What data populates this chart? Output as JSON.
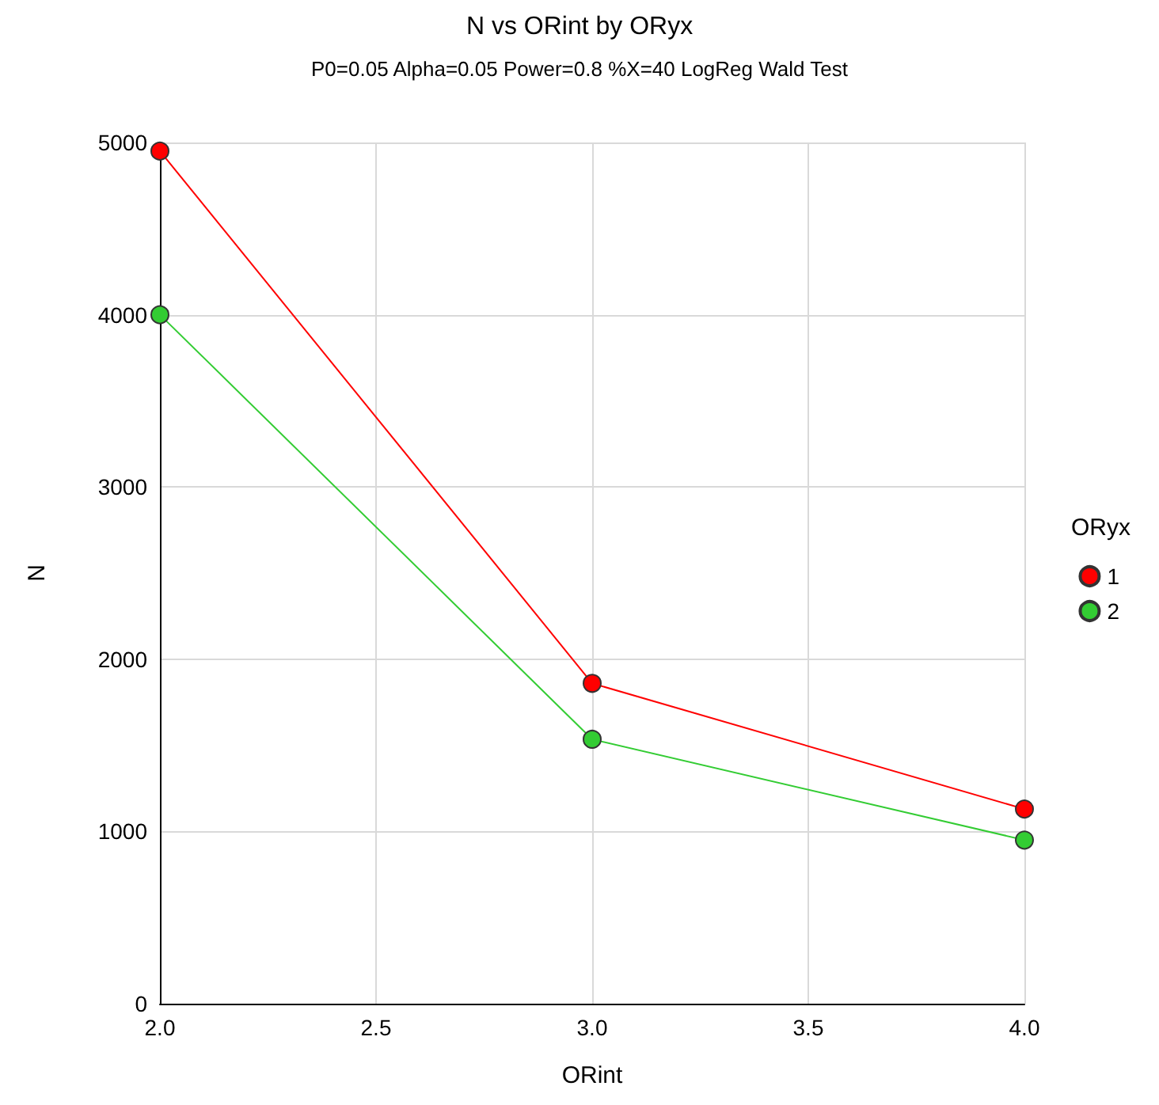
{
  "chart_data": {
    "type": "line",
    "title": "N vs ORint by ORyx",
    "subtitle": "P0=0.05 Alpha=0.05 Power=0.8 %X=40 LogReg Wald Test",
    "xlabel": "ORint",
    "ylabel": "N",
    "legend_title": "ORyx",
    "x": [
      2.0,
      3.0,
      4.0
    ],
    "series": [
      {
        "name": "1",
        "color": "#ff0000",
        "values": [
          4950,
          1860,
          1130
        ]
      },
      {
        "name": "2",
        "color": "#33cc33",
        "values": [
          4000,
          1535,
          950
        ]
      }
    ],
    "xlim": [
      2.0,
      4.0
    ],
    "xticks": [
      {
        "value": 2,
        "label": "2.0"
      },
      {
        "value": 2.5,
        "label": "2.5"
      },
      {
        "value": 3,
        "label": "3.0"
      },
      {
        "value": 3.5,
        "label": "3.5"
      },
      {
        "value": 4,
        "label": "4.0"
      }
    ],
    "ylim": [
      0,
      5000
    ],
    "yticks": [
      0,
      1000,
      2000,
      3000,
      4000,
      5000
    ],
    "grid": true,
    "legend": "right",
    "marker": "circle",
    "line_style": "solid"
  }
}
